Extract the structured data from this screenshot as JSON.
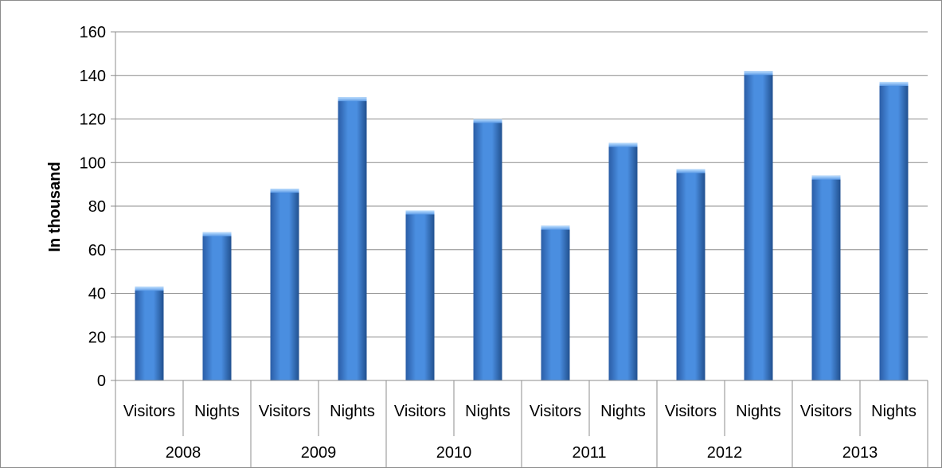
{
  "chart_data": {
    "type": "bar",
    "title": "",
    "xlabel": "",
    "ylabel": "In thousand",
    "ylim": [
      0,
      160
    ],
    "yticks": [
      0,
      20,
      40,
      60,
      80,
      100,
      120,
      140,
      160
    ],
    "grid": true,
    "legend": "none",
    "groups": [
      "2008",
      "2009",
      "2010",
      "2011",
      "2012",
      "2013"
    ],
    "subcategories": [
      "Visitors",
      "Nights"
    ],
    "categories": [
      "Visitors",
      "Nights",
      "Visitors",
      "Nights",
      "Visitors",
      "Nights",
      "Visitors",
      "Nights",
      "Visitors",
      "Nights",
      "Visitors",
      "Nights"
    ],
    "values": [
      43,
      68,
      88,
      130,
      78,
      120,
      71,
      109,
      97,
      142,
      94,
      137
    ],
    "colors": {
      "bar": "#3f7fcf",
      "grid": "#8c8c8c"
    }
  }
}
